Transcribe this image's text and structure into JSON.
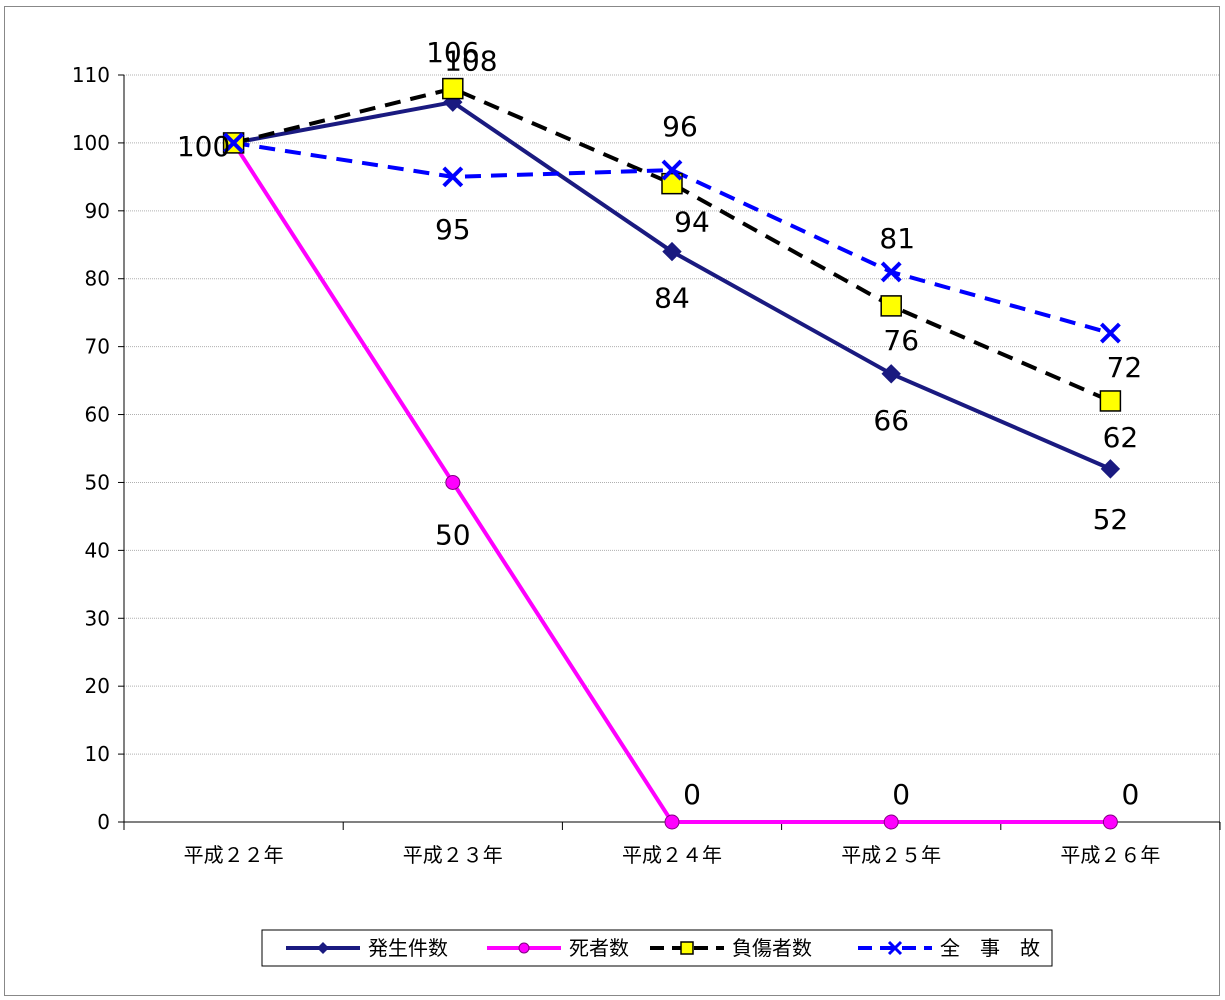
{
  "chart_data": {
    "type": "line",
    "categories": [
      "平成２２年",
      "平成２３年",
      "平成２４年",
      "平成２５年",
      "平成２６年"
    ],
    "ylim": [
      0,
      110
    ],
    "yticks": [
      0,
      10,
      20,
      30,
      40,
      50,
      60,
      70,
      80,
      90,
      100,
      110
    ],
    "grid": true,
    "legend_position": "bottom",
    "series": [
      {
        "name": "発生件数",
        "values": [
          100,
          106,
          84,
          66,
          52
        ],
        "labels": [
          "100",
          "106",
          "84",
          "66",
          "52"
        ],
        "color": "#1a1a80",
        "marker": "diamond",
        "dash": "solid"
      },
      {
        "name": "死者数",
        "values": [
          100,
          50,
          0,
          0,
          0
        ],
        "labels": [
          "",
          "50",
          "0",
          "0",
          "0"
        ],
        "color": "#ff00ff",
        "marker": "circle",
        "dash": "solid"
      },
      {
        "name": "負傷者数",
        "values": [
          100,
          108,
          94,
          76,
          62
        ],
        "labels": [
          "",
          "108",
          "94",
          "76",
          "62"
        ],
        "color": "#000000",
        "marker": "square",
        "marker_fill": "#ffff00",
        "dash": "dashed"
      },
      {
        "name": "全　事　故",
        "values": [
          100,
          95,
          96,
          81,
          72
        ],
        "labels": [
          "",
          "95",
          "96",
          "81",
          "72"
        ],
        "color": "#0000ff",
        "marker": "x",
        "dash": "dashed"
      }
    ]
  }
}
